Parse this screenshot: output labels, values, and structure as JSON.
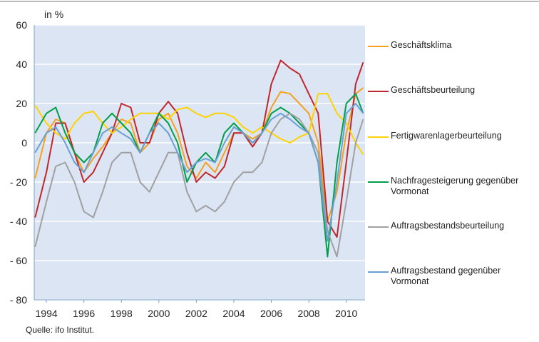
{
  "chart_data": {
    "type": "line",
    "unit_label": "in %",
    "source": "Quelle: ifo Institut.",
    "x": [
      1993.4,
      1994.0,
      1994.5,
      1995.0,
      1995.5,
      1996.0,
      1996.5,
      1997.0,
      1997.5,
      1998.0,
      1998.5,
      1999.0,
      1999.5,
      2000.0,
      2000.5,
      2001.0,
      2001.5,
      2002.0,
      2002.5,
      2003.0,
      2003.5,
      2004.0,
      2004.5,
      2005.0,
      2005.5,
      2006.0,
      2006.5,
      2007.0,
      2007.5,
      2008.0,
      2008.5,
      2009.0,
      2009.5,
      2010.0,
      2010.5,
      2010.9
    ],
    "series": [
      {
        "name": "Geschäftsklima",
        "color": "#f5a01e",
        "values": [
          -18,
          5,
          12,
          10,
          -5,
          -15,
          -8,
          -2,
          5,
          12,
          10,
          -5,
          0,
          12,
          15,
          5,
          -12,
          -18,
          -10,
          -15,
          -5,
          5,
          5,
          2,
          5,
          18,
          26,
          25,
          20,
          15,
          0,
          -40,
          -25,
          5,
          25,
          28
        ]
      },
      {
        "name": "Geschäftsbeurteilung",
        "color": "#c0272d",
        "values": [
          -38,
          -15,
          10,
          10,
          -5,
          -20,
          -15,
          -5,
          5,
          20,
          18,
          0,
          0,
          15,
          21,
          15,
          -5,
          -20,
          -15,
          -18,
          -12,
          5,
          5,
          -2,
          5,
          30,
          42,
          38,
          35,
          25,
          15,
          -40,
          -48,
          -10,
          30,
          41
        ]
      },
      {
        "name": "Fertigwarenlagerbeurteilung",
        "color": "#ffd200",
        "values": [
          19,
          10,
          5,
          2,
          10,
          15,
          16,
          10,
          5,
          8,
          12,
          15,
          15,
          15,
          12,
          17,
          18,
          15,
          13,
          15,
          15,
          13,
          8,
          5,
          8,
          5,
          2,
          0,
          3,
          5,
          25,
          25,
          15,
          10,
          0,
          -6
        ]
      },
      {
        "name": "Nachfragesteigerung gegenüber Vormonat",
        "color": "#00a04a",
        "values": [
          5,
          15,
          18,
          5,
          -5,
          -10,
          -5,
          10,
          15,
          10,
          5,
          -5,
          5,
          15,
          10,
          0,
          -20,
          -10,
          -5,
          -10,
          5,
          10,
          5,
          0,
          5,
          15,
          18,
          15,
          10,
          5,
          -10,
          -58,
          -10,
          20,
          25,
          15
        ]
      },
      {
        "name": "Auftragsbestandsbeurteilung",
        "color": "#a0a0a0",
        "values": [
          -53,
          -30,
          -12,
          -10,
          -20,
          -35,
          -38,
          -25,
          -10,
          -5,
          -5,
          -20,
          -25,
          -15,
          -5,
          -5,
          -25,
          -35,
          -32,
          -35,
          -30,
          -20,
          -15,
          -15,
          -10,
          5,
          12,
          15,
          12,
          5,
          -5,
          -45,
          -58,
          -30,
          0,
          12
        ]
      },
      {
        "name": "Auftragsbestand gegenüber Vormonat",
        "color": "#6a9fd4",
        "values": [
          -5,
          5,
          8,
          0,
          -10,
          -15,
          -5,
          5,
          8,
          5,
          2,
          -5,
          5,
          10,
          5,
          -5,
          -15,
          -10,
          -8,
          -10,
          0,
          8,
          5,
          0,
          5,
          12,
          15,
          12,
          8,
          5,
          -10,
          -50,
          -20,
          15,
          20,
          15
        ]
      }
    ],
    "xlim": [
      1993.35,
      2011.0
    ],
    "xticks": [
      1994,
      1996,
      1998,
      2000,
      2002,
      2004,
      2006,
      2008,
      2010
    ],
    "ylim": [
      -80,
      60
    ],
    "yticks": [
      {
        "value": -80,
        "label": "- 80"
      },
      {
        "value": -60,
        "label": "- 60"
      },
      {
        "value": -40,
        "label": "- 40"
      },
      {
        "value": -20,
        "label": "- 20"
      },
      0,
      20,
      40,
      60
    ],
    "grid": true,
    "legend": "right"
  }
}
